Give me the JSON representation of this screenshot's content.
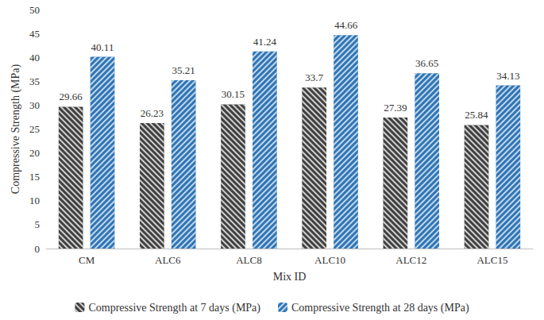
{
  "chart_data": {
    "type": "bar",
    "x_label": "Mix ID",
    "y_label": "Compressive Strength (MPa)",
    "categories": [
      "CM",
      "ALC6",
      "ALC8",
      "ALC10",
      "ALC12",
      "ALC15"
    ],
    "series": [
      {
        "name": "Compressive Strength at 7 days (MPa)",
        "color": "#404040",
        "values": [
          29.66,
          26.23,
          30.15,
          33.7,
          27.39,
          25.84
        ]
      },
      {
        "name": "Compressive Strength at 28 days (MPa)",
        "color": "#2e75b6",
        "values": [
          40.11,
          35.21,
          41.24,
          44.66,
          36.65,
          34.13
        ]
      }
    ],
    "ylim": [
      0,
      50
    ],
    "yticks": [
      0,
      5,
      10,
      15,
      20,
      25,
      30,
      35,
      40,
      45,
      50
    ],
    "grid": false,
    "legend": "bottom",
    "data_labels": true
  }
}
